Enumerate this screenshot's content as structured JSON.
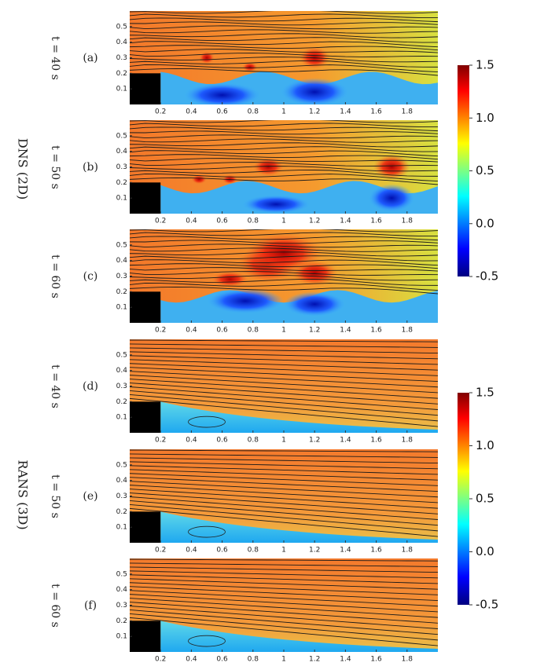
{
  "chart_data": [
    {
      "type": "field",
      "panel_label": "(a)",
      "time_label": "t = 40 s",
      "model": "dns",
      "xlim": [
        0,
        2.0
      ],
      "ylim": [
        0,
        0.6
      ],
      "xticks": [
        0.2,
        0.4,
        0.6,
        0.8,
        1,
        1.2,
        1.4,
        1.6,
        1.8
      ],
      "yticks": [
        0.1,
        0.2,
        0.3,
        0.4,
        0.5
      ]
    },
    {
      "type": "field",
      "panel_label": "(b)",
      "time_label": "t = 50 s",
      "model": "dns",
      "xlim": [
        0,
        2.0
      ],
      "ylim": [
        0,
        0.6
      ],
      "xticks": [
        0.2,
        0.4,
        0.6,
        0.8,
        1,
        1.2,
        1.4,
        1.6,
        1.8
      ],
      "yticks": [
        0.1,
        0.2,
        0.3,
        0.4,
        0.5
      ]
    },
    {
      "type": "field",
      "panel_label": "(c)",
      "time_label": "t = 60 s",
      "model": "dns",
      "xlim": [
        0,
        2.0
      ],
      "ylim": [
        0,
        0.6
      ],
      "xticks": [
        0.2,
        0.4,
        0.6,
        0.8,
        1,
        1.2,
        1.4,
        1.6,
        1.8
      ],
      "yticks": [
        0.1,
        0.2,
        0.3,
        0.4,
        0.5
      ]
    },
    {
      "type": "field",
      "panel_label": "(d)",
      "time_label": "t = 40 s",
      "model": "rans",
      "xlim": [
        0,
        2.0
      ],
      "ylim": [
        0,
        0.6
      ],
      "xticks": [
        0.2,
        0.4,
        0.6,
        0.8,
        1,
        1.2,
        1.4,
        1.6,
        1.8
      ],
      "yticks": [
        0.1,
        0.2,
        0.3,
        0.4,
        0.5
      ]
    },
    {
      "type": "field",
      "panel_label": "(e)",
      "time_label": "t = 50 s",
      "model": "rans",
      "xlim": [
        0,
        2.0
      ],
      "ylim": [
        0,
        0.6
      ],
      "xticks": [
        0.2,
        0.4,
        0.6,
        0.8,
        1,
        1.2,
        1.4,
        1.6,
        1.8
      ],
      "yticks": [
        0.1,
        0.2,
        0.3,
        0.4,
        0.5
      ]
    },
    {
      "type": "field",
      "panel_label": "(f)",
      "time_label": "t = 60 s",
      "model": "rans",
      "xlim": [
        0,
        2.0
      ],
      "ylim": [
        0,
        0.6
      ],
      "xticks": [
        0.2,
        0.4,
        0.6,
        0.8,
        1,
        1.2,
        1.4,
        1.6,
        1.8
      ],
      "yticks": [
        0.1,
        0.2,
        0.3,
        0.4,
        0.5
      ]
    }
  ],
  "groups": [
    {
      "label": "DNS (2D)",
      "colorbar": {
        "lim": [
          -0.5,
          1.5
        ],
        "ticks": [
          {
            "value": 1.5,
            "label": "1.5"
          },
          {
            "value": 1.0,
            "label": "1.0"
          },
          {
            "value": 0.5,
            "label": "0.5"
          },
          {
            "value": 0.0,
            "label": "0.0"
          },
          {
            "value": -0.5,
            "label": "-0.5"
          }
        ]
      }
    },
    {
      "label": "RANS (3D)",
      "colorbar": {
        "lim": [
          -0.5,
          1.5
        ],
        "ticks": [
          {
            "value": 1.5,
            "label": "1.5"
          },
          {
            "value": 1.0,
            "label": "1.0"
          },
          {
            "value": 0.5,
            "label": "0.5"
          },
          {
            "value": 0.0,
            "label": "0.0"
          },
          {
            "value": -0.5,
            "label": "-0.5"
          }
        ]
      }
    }
  ]
}
